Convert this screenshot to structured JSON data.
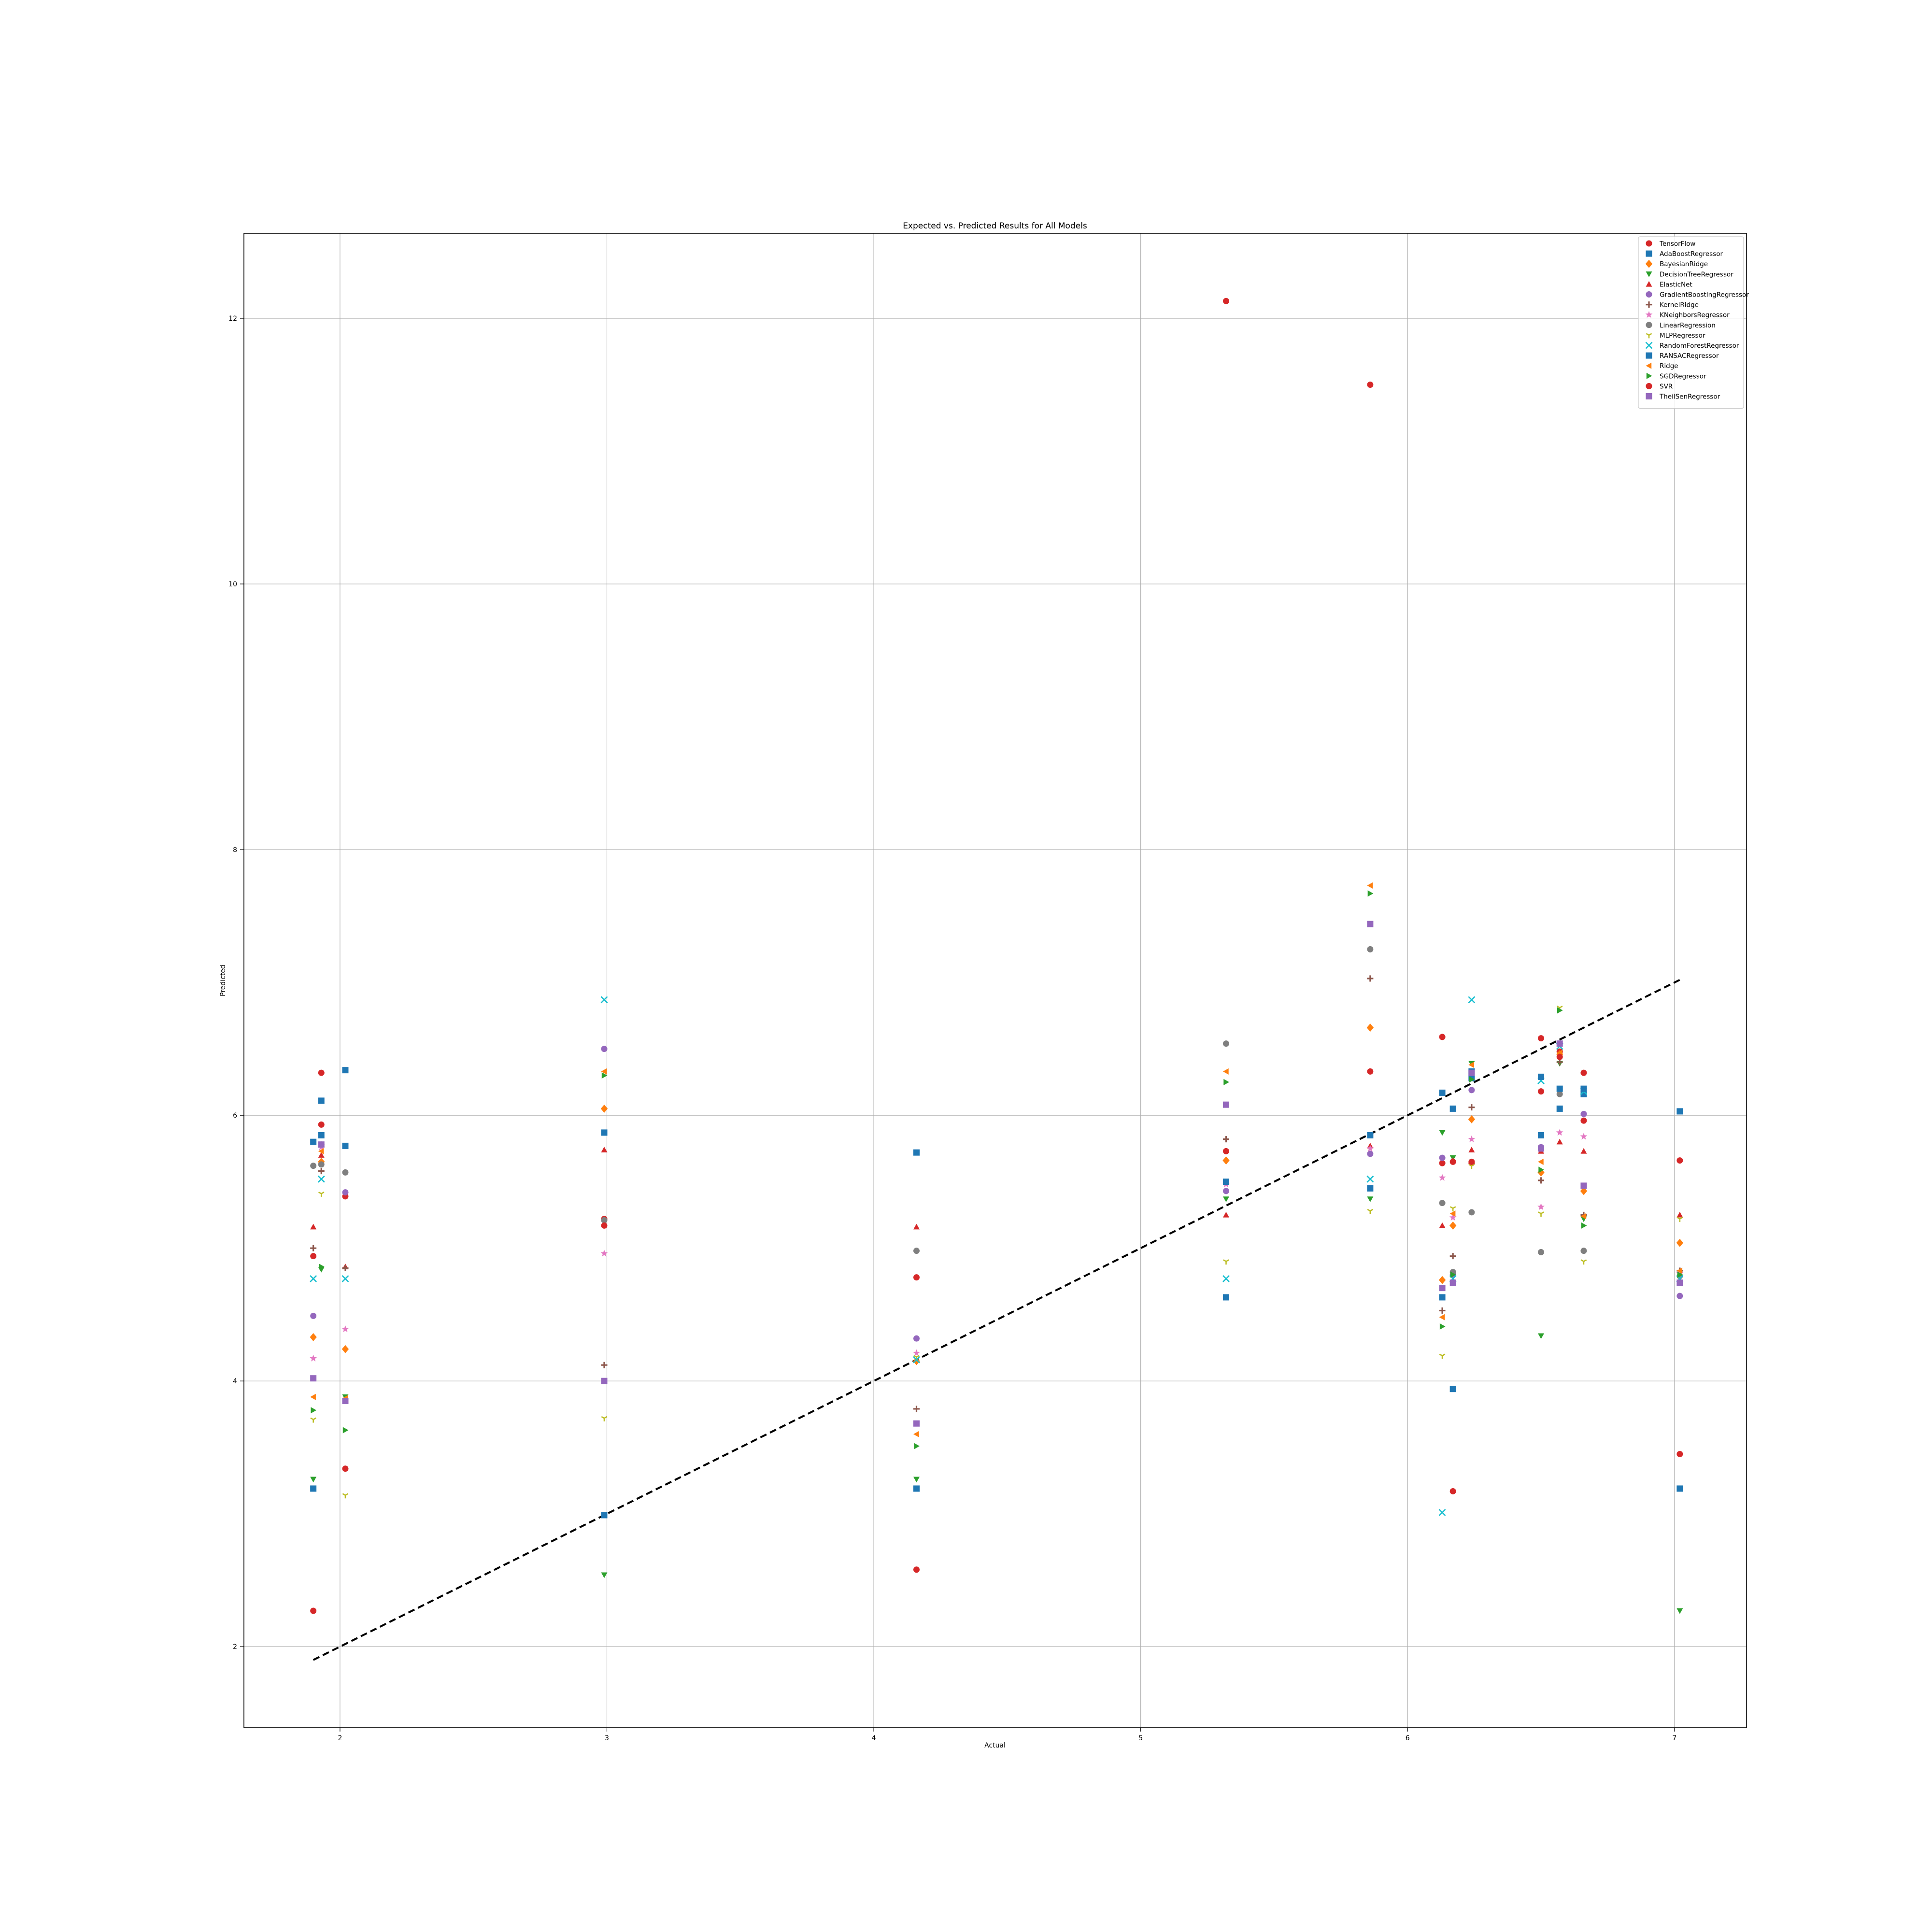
{
  "chart_data": {
    "type": "scatter",
    "title": "Expected vs. Predicted Results for All Models",
    "xlabel": "Actual",
    "ylabel": "Predicted",
    "xlim": [
      1.64,
      7.27
    ],
    "ylim": [
      1.39,
      12.64
    ],
    "xticks": [
      2,
      3,
      4,
      5,
      6,
      7
    ],
    "yticks": [
      2,
      4,
      6,
      8,
      10,
      12
    ],
    "grid": true,
    "legend_position": "top-right",
    "reference_line": {
      "style": "dashed",
      "color": "#000000",
      "from": [
        1.9,
        1.9
      ],
      "to": [
        7.02,
        7.02
      ]
    },
    "x": [
      1.9,
      1.93,
      2.02,
      2.99,
      4.16,
      5.32,
      5.86,
      6.13,
      6.17,
      6.24,
      6.5,
      6.57,
      6.66,
      7.02
    ],
    "series": [
      {
        "name": "TensorFlow",
        "marker": "circle",
        "color": "#d62728",
        "points": [
          [
            1.9,
            4.94
          ],
          [
            1.93,
            5.93
          ],
          [
            2.02,
            5.39
          ],
          [
            2.99,
            5.22
          ],
          [
            4.16,
            4.78
          ],
          [
            5.32,
            5.73
          ],
          [
            5.86,
            6.33
          ],
          [
            6.13,
            5.64
          ],
          [
            6.17,
            5.65
          ],
          [
            6.24,
            5.64
          ],
          [
            6.5,
            6.58
          ],
          [
            6.57,
            6.48
          ],
          [
            6.66,
            6.32
          ],
          [
            7.02,
            5.66
          ]
        ]
      },
      {
        "name": "AdaBoostRegressor",
        "marker": "square",
        "color": "#1f77b4",
        "points": [
          [
            1.9,
            5.8
          ],
          [
            1.93,
            6.11
          ],
          [
            2.02,
            6.34
          ],
          [
            2.99,
            5.87
          ],
          [
            4.16,
            5.72
          ],
          [
            5.32,
            4.63
          ],
          [
            5.86,
            5.85
          ],
          [
            6.13,
            4.63
          ],
          [
            6.17,
            6.05
          ],
          [
            6.24,
            6.33
          ],
          [
            6.5,
            5.85
          ],
          [
            6.57,
            6.05
          ],
          [
            6.66,
            6.16
          ],
          [
            7.02,
            6.03
          ]
        ]
      },
      {
        "name": "BayesianRidge",
        "marker": "diamond",
        "color": "#ff7f0e",
        "points": [
          [
            1.9,
            4.33
          ],
          [
            1.93,
            5.65
          ],
          [
            2.02,
            4.24
          ],
          [
            2.99,
            6.05
          ],
          [
            4.16,
            4.15
          ],
          [
            5.32,
            5.66
          ],
          [
            5.86,
            6.66
          ],
          [
            6.13,
            4.76
          ],
          [
            6.17,
            5.17
          ],
          [
            6.24,
            5.97
          ],
          [
            6.5,
            5.57
          ],
          [
            6.57,
            6.46
          ],
          [
            6.66,
            5.43
          ],
          [
            7.02,
            5.04
          ]
        ]
      },
      {
        "name": "DecisionTreeRegressor",
        "marker": "triangle-down",
        "color": "#2ca02c",
        "points": [
          [
            1.9,
            3.26
          ],
          [
            1.93,
            4.84
          ],
          [
            2.02,
            3.88
          ],
          [
            2.99,
            2.54
          ],
          [
            4.16,
            3.26
          ],
          [
            5.32,
            5.37
          ],
          [
            5.86,
            5.37
          ],
          [
            6.13,
            5.87
          ],
          [
            6.17,
            5.68
          ],
          [
            6.24,
            6.39
          ],
          [
            6.5,
            4.34
          ],
          [
            6.57,
            6.39
          ],
          [
            6.66,
            5.22
          ],
          [
            7.02,
            2.27
          ]
        ]
      },
      {
        "name": "ElasticNet",
        "marker": "triangle-up",
        "color": "#d62728",
        "points": [
          [
            1.9,
            5.16
          ],
          [
            1.93,
            5.7
          ],
          [
            2.02,
            4.86
          ],
          [
            2.99,
            5.74
          ],
          [
            4.16,
            5.16
          ],
          [
            5.32,
            5.25
          ],
          [
            5.86,
            5.77
          ],
          [
            6.13,
            5.17
          ],
          [
            6.17,
            5.66
          ],
          [
            6.24,
            5.74
          ],
          [
            6.5,
            5.73
          ],
          [
            6.57,
            5.8
          ],
          [
            6.66,
            5.73
          ],
          [
            7.02,
            5.25
          ]
        ]
      },
      {
        "name": "GradientBoostingRegressor",
        "marker": "circle",
        "color": "#9467bd",
        "points": [
          [
            1.9,
            4.49
          ],
          [
            1.93,
            5.78
          ],
          [
            2.02,
            5.42
          ],
          [
            2.99,
            6.5
          ],
          [
            4.16,
            4.32
          ],
          [
            5.32,
            5.43
          ],
          [
            5.86,
            5.71
          ],
          [
            6.13,
            5.68
          ],
          [
            6.17,
            4.8
          ],
          [
            6.24,
            6.19
          ],
          [
            6.5,
            5.76
          ],
          [
            6.57,
            6.54
          ],
          [
            6.66,
            6.01
          ],
          [
            7.02,
            4.64
          ]
        ]
      },
      {
        "name": "KernelRidge",
        "marker": "plus",
        "color": "#8c564b",
        "points": [
          [
            1.9,
            5.0
          ],
          [
            1.93,
            5.58
          ],
          [
            2.02,
            4.85
          ],
          [
            2.99,
            4.12
          ],
          [
            4.16,
            3.79
          ],
          [
            5.32,
            5.82
          ],
          [
            5.86,
            7.03
          ],
          [
            6.13,
            4.53
          ],
          [
            6.17,
            4.94
          ],
          [
            6.24,
            6.06
          ],
          [
            6.5,
            5.51
          ],
          [
            6.57,
            6.4
          ],
          [
            6.66,
            5.25
          ],
          [
            7.02,
            4.83
          ]
        ]
      },
      {
        "name": "KNeighborsRegressor",
        "marker": "star",
        "color": "#e377c2",
        "points": [
          [
            1.9,
            4.17
          ],
          [
            1.93,
            5.76
          ],
          [
            2.02,
            4.39
          ],
          [
            2.99,
            4.96
          ],
          [
            4.16,
            4.21
          ],
          [
            5.32,
            5.48
          ],
          [
            5.86,
            5.75
          ],
          [
            6.13,
            5.53
          ],
          [
            6.17,
            5.23
          ],
          [
            6.24,
            5.82
          ],
          [
            6.5,
            5.31
          ],
          [
            6.57,
            5.87
          ],
          [
            6.66,
            5.84
          ],
          [
            7.02,
            4.81
          ]
        ]
      },
      {
        "name": "LinearRegression",
        "marker": "circle",
        "color": "#7f7f7f",
        "points": [
          [
            1.9,
            5.62
          ],
          [
            1.93,
            5.63
          ],
          [
            2.02,
            5.57
          ],
          [
            2.99,
            5.21
          ],
          [
            4.16,
            4.98
          ],
          [
            5.32,
            6.54
          ],
          [
            5.86,
            7.25
          ],
          [
            6.13,
            5.34
          ],
          [
            6.17,
            4.82
          ],
          [
            6.24,
            5.27
          ],
          [
            6.5,
            4.97
          ],
          [
            6.57,
            6.16
          ],
          [
            6.66,
            4.98
          ],
          [
            7.02,
            4.79
          ]
        ]
      },
      {
        "name": "MLPRegressor",
        "marker": "tri",
        "color": "#bcbd22",
        "points": [
          [
            1.9,
            3.71
          ],
          [
            1.93,
            5.41
          ],
          [
            2.02,
            3.14
          ],
          [
            2.99,
            3.72
          ],
          [
            4.16,
            4.18
          ],
          [
            5.32,
            4.9
          ],
          [
            5.86,
            5.28
          ],
          [
            6.13,
            4.19
          ],
          [
            6.17,
            5.3
          ],
          [
            6.24,
            5.62
          ],
          [
            6.5,
            5.26
          ],
          [
            6.57,
            6.81
          ],
          [
            6.66,
            4.9
          ],
          [
            7.02,
            5.22
          ]
        ]
      },
      {
        "name": "RandomForestRegressor",
        "marker": "x",
        "color": "#17becf",
        "points": [
          [
            1.9,
            4.77
          ],
          [
            1.93,
            5.52
          ],
          [
            2.02,
            4.77
          ],
          [
            2.99,
            6.87
          ],
          [
            4.16,
            4.16
          ],
          [
            5.32,
            4.77
          ],
          [
            5.86,
            5.52
          ],
          [
            6.13,
            3.01
          ],
          [
            6.17,
            4.77
          ],
          [
            6.24,
            6.87
          ],
          [
            6.5,
            6.26
          ],
          [
            6.57,
            6.52
          ],
          [
            6.66,
            6.18
          ],
          [
            7.02,
            4.77
          ]
        ]
      },
      {
        "name": "RANSACRegressor",
        "marker": "square",
        "color": "#1f77b4",
        "points": [
          [
            1.9,
            3.19
          ],
          [
            1.93,
            5.85
          ],
          [
            2.02,
            5.77
          ],
          [
            2.99,
            2.99
          ],
          [
            4.16,
            3.19
          ],
          [
            5.32,
            5.5
          ],
          [
            5.86,
            5.45
          ],
          [
            6.13,
            6.17
          ],
          [
            6.17,
            3.94
          ],
          [
            6.24,
            6.28
          ],
          [
            6.5,
            6.29
          ],
          [
            6.57,
            6.2
          ],
          [
            6.66,
            6.2
          ],
          [
            7.02,
            3.19
          ]
        ]
      },
      {
        "name": "Ridge",
        "marker": "triangle-left",
        "color": "#ff7f0e",
        "points": [
          [
            1.9,
            3.88
          ],
          [
            1.93,
            5.73
          ],
          [
            2.02,
            3.87
          ],
          [
            2.99,
            6.33
          ],
          [
            4.16,
            3.6
          ],
          [
            5.32,
            6.33
          ],
          [
            5.86,
            7.73
          ],
          [
            6.13,
            4.48
          ],
          [
            6.17,
            5.26
          ],
          [
            6.24,
            6.38
          ],
          [
            6.5,
            5.65
          ],
          [
            6.57,
            6.47
          ],
          [
            6.66,
            5.24
          ],
          [
            7.02,
            4.83
          ]
        ]
      },
      {
        "name": "SGDRegressor",
        "marker": "triangle-right",
        "color": "#2ca02c",
        "points": [
          [
            1.9,
            3.78
          ],
          [
            1.93,
            4.86
          ],
          [
            2.02,
            3.63
          ],
          [
            2.99,
            6.3
          ],
          [
            4.16,
            3.51
          ],
          [
            5.32,
            6.25
          ],
          [
            5.86,
            7.67
          ],
          [
            6.13,
            4.41
          ],
          [
            6.17,
            4.8
          ],
          [
            6.24,
            6.27
          ],
          [
            6.5,
            5.59
          ],
          [
            6.57,
            6.79
          ],
          [
            6.66,
            5.17
          ],
          [
            7.02,
            4.8
          ]
        ]
      },
      {
        "name": "SVR",
        "marker": "circle",
        "color": "#d62728",
        "points": [
          [
            1.9,
            2.27
          ],
          [
            1.93,
            6.32
          ],
          [
            2.02,
            3.34
          ],
          [
            2.99,
            5.17
          ],
          [
            4.16,
            2.58
          ],
          [
            5.32,
            12.13
          ],
          [
            5.86,
            11.5
          ],
          [
            6.13,
            6.59
          ],
          [
            6.17,
            3.17
          ],
          [
            6.24,
            5.65
          ],
          [
            6.5,
            6.18
          ],
          [
            6.57,
            6.44
          ],
          [
            6.66,
            5.96
          ],
          [
            7.02,
            3.45
          ]
        ]
      },
      {
        "name": "TheilSenRegressor",
        "marker": "square",
        "color": "#9467bd",
        "points": [
          [
            1.9,
            4.02
          ],
          [
            1.93,
            5.78
          ],
          [
            2.02,
            3.85
          ],
          [
            2.99,
            4.0
          ],
          [
            4.16,
            3.68
          ],
          [
            5.32,
            6.08
          ],
          [
            5.86,
            7.44
          ],
          [
            6.13,
            4.7
          ],
          [
            6.17,
            4.74
          ],
          [
            6.24,
            6.32
          ],
          [
            6.5,
            5.75
          ],
          [
            6.57,
            6.54
          ],
          [
            6.66,
            5.47
          ],
          [
            7.02,
            4.74
          ]
        ]
      }
    ]
  }
}
